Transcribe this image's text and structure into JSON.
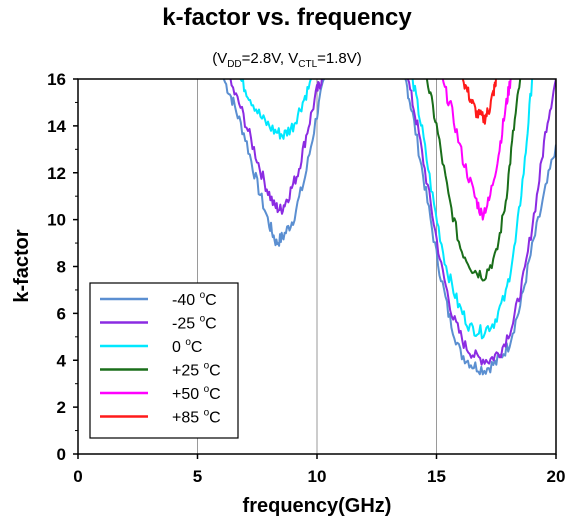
{
  "chart_data": {
    "type": "line",
    "title": "k-factor vs. frequency",
    "subtitle": {
      "open": "(V",
      "vdd_sub": "DD",
      "mid": "=2.8V, V",
      "vctl_sub": "CTL",
      "close": "=1.8V)"
    },
    "xlabel": "frequency(GHz)",
    "ylabel": "k-factor",
    "xlim": [
      0,
      20
    ],
    "ylim": [
      0,
      16
    ],
    "x_ticks": [
      "0",
      "5",
      "10",
      "15",
      "20"
    ],
    "y_ticks": [
      "0",
      "2",
      "4",
      "6",
      "8",
      "10",
      "12",
      "14",
      "16"
    ],
    "grid": true,
    "legend_position": "bottom-left",
    "series": [
      {
        "name": "-40 °C",
        "label_main": "-40 ",
        "label_sup": "o",
        "label_unit": "C",
        "color": "#5b8fd1",
        "segments": [
          [
            [
              6.1,
              16
            ],
            [
              6.5,
              15.0
            ],
            [
              7.0,
              13.5
            ],
            [
              7.5,
              11.5
            ],
            [
              8.0,
              9.8
            ],
            [
              8.3,
              9.0
            ],
            [
              8.6,
              9.3
            ],
            [
              9.0,
              10.0
            ],
            [
              9.5,
              11.8
            ],
            [
              10.0,
              14.5
            ],
            [
              10.3,
              16
            ]
          ],
          [
            [
              13.7,
              16
            ],
            [
              14.0,
              14.5
            ],
            [
              14.5,
              11.5
            ],
            [
              15.0,
              8.5
            ],
            [
              15.5,
              6.0
            ],
            [
              16.0,
              4.3
            ],
            [
              16.5,
              3.8
            ],
            [
              17.0,
              3.6
            ],
            [
              17.5,
              3.9
            ],
            [
              18.0,
              4.6
            ],
            [
              18.5,
              6.3
            ],
            [
              19.0,
              8.8
            ],
            [
              19.5,
              11.0
            ],
            [
              20.0,
              13.2
            ]
          ]
        ]
      },
      {
        "name": "-25 °C",
        "label_main": "-25 ",
        "label_sup": "o",
        "label_unit": "C",
        "color": "#8b2be2",
        "segments": [
          [
            [
              6.3,
              16
            ],
            [
              6.8,
              14.8
            ],
            [
              7.3,
              13.2
            ],
            [
              7.8,
              11.6
            ],
            [
              8.2,
              10.6
            ],
            [
              8.5,
              10.4
            ],
            [
              8.8,
              11.0
            ],
            [
              9.2,
              12.0
            ],
            [
              9.6,
              13.8
            ],
            [
              10.0,
              15.5
            ],
            [
              10.2,
              16
            ]
          ],
          [
            [
              13.8,
              16
            ],
            [
              14.2,
              14.0
            ],
            [
              14.7,
              11.0
            ],
            [
              15.2,
              8.0
            ],
            [
              15.7,
              5.8
            ],
            [
              16.2,
              4.6
            ],
            [
              16.7,
              4.1
            ],
            [
              17.2,
              4.0
            ],
            [
              17.7,
              4.4
            ],
            [
              18.2,
              5.6
            ],
            [
              18.7,
              7.8
            ],
            [
              19.2,
              11.0
            ],
            [
              19.6,
              14.0
            ],
            [
              20.0,
              16
            ]
          ]
        ]
      },
      {
        "name": "0 °C",
        "label_main": "0 ",
        "label_sup": "o",
        "label_unit": "C",
        "color": "#00e8ff",
        "segments": [
          [
            [
              6.8,
              16
            ],
            [
              7.2,
              15.2
            ],
            [
              7.7,
              14.3
            ],
            [
              8.2,
              13.8
            ],
            [
              8.6,
              13.6
            ],
            [
              9.0,
              14.0
            ],
            [
              9.4,
              15.0
            ],
            [
              9.8,
              16
            ]
          ],
          [
            [
              14.0,
              16
            ],
            [
              14.4,
              13.8
            ],
            [
              14.9,
              10.6
            ],
            [
              15.4,
              8.0
            ],
            [
              15.9,
              6.4
            ],
            [
              16.4,
              5.4
            ],
            [
              16.9,
              5.2
            ],
            [
              17.4,
              5.6
            ],
            [
              17.9,
              6.8
            ],
            [
              18.3,
              9.0
            ],
            [
              18.7,
              12.5
            ],
            [
              19.0,
              16
            ]
          ]
        ]
      },
      {
        "name": "+25 °C",
        "label_main": "+25 ",
        "label_sup": "o",
        "label_unit": "C",
        "color": "#1a6e1a",
        "segments": [
          [
            [
              14.6,
              16
            ],
            [
              15.0,
              14.0
            ],
            [
              15.5,
              11.0
            ],
            [
              16.0,
              8.8
            ],
            [
              16.5,
              7.9
            ],
            [
              17.0,
              7.6
            ],
            [
              17.5,
              8.5
            ],
            [
              17.9,
              10.8
            ],
            [
              18.2,
              13.6
            ],
            [
              18.5,
              16
            ]
          ]
        ]
      },
      {
        "name": "+50 °C",
        "label_main": "+50 ",
        "label_sup": "o",
        "label_unit": "C",
        "color": "#ff00ff",
        "segments": [
          [
            [
              15.2,
              16
            ],
            [
              15.6,
              14.8
            ],
            [
              16.1,
              12.6
            ],
            [
              16.6,
              11.0
            ],
            [
              16.9,
              10.2
            ],
            [
              17.2,
              10.8
            ],
            [
              17.6,
              12.8
            ],
            [
              17.9,
              14.8
            ],
            [
              18.1,
              16
            ]
          ]
        ]
      },
      {
        "name": "+85 °C",
        "label_main": "+85 ",
        "label_sup": "o",
        "label_unit": "C",
        "color": "#ff1a1a",
        "segments": [
          [
            [
              16.1,
              16
            ],
            [
              16.4,
              15.2
            ],
            [
              16.7,
              14.5
            ],
            [
              17.0,
              14.3
            ],
            [
              17.2,
              14.7
            ],
            [
              17.4,
              15.5
            ],
            [
              17.5,
              16
            ]
          ]
        ]
      }
    ]
  }
}
